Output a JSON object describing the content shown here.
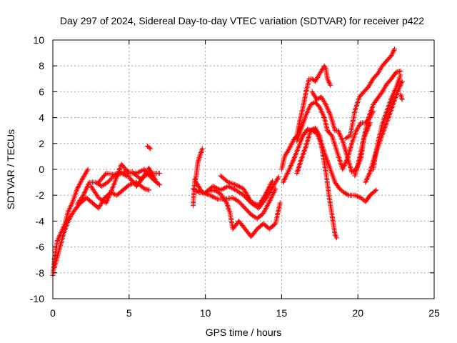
{
  "chart_data": {
    "type": "scatter",
    "title": "Day 297 of 2024, Sidereal Day-to-day VTEC variation (SDTVAR) for receiver p422",
    "xlabel": "GPS time / hours",
    "ylabel": "SDTVAR / TECUs",
    "xlim": [
      0,
      25
    ],
    "ylim": [
      -10,
      10
    ],
    "xticks": [
      "0",
      "5",
      "10",
      "15",
      "20",
      "25"
    ],
    "yticks": [
      "-10",
      "-8",
      "-6",
      "-4",
      "-2",
      "0",
      "2",
      "4",
      "6",
      "8",
      "10"
    ],
    "grid": true,
    "marker": "+",
    "series_color": "#ff0000",
    "tracks": [
      [
        [
          0.0,
          -8.2
        ],
        [
          0.1,
          -7.0
        ],
        [
          0.2,
          -6.2
        ],
        [
          0.3,
          -5.5
        ],
        [
          0.5,
          -5.0
        ],
        [
          0.8,
          -4.2
        ],
        [
          1.0,
          -3.3
        ],
        [
          1.3,
          -2.5
        ],
        [
          1.6,
          -1.5
        ],
        [
          2.0,
          -0.6
        ],
        [
          2.3,
          0.0
        ]
      ],
      [
        [
          0.1,
          -7.6
        ],
        [
          0.4,
          -6.3
        ],
        [
          0.7,
          -5.0
        ],
        [
          1.0,
          -4.0
        ],
        [
          1.4,
          -3.2
        ],
        [
          1.8,
          -2.6
        ],
        [
          2.2,
          -2.2
        ],
        [
          2.6,
          -2.6
        ],
        [
          3.0,
          -3.0
        ],
        [
          3.4,
          -2.2
        ],
        [
          3.8,
          -1.8
        ],
        [
          4.2,
          -2.0
        ],
        [
          4.6,
          -1.6
        ],
        [
          5.0,
          -1.2
        ],
        [
          5.5,
          -1.0
        ],
        [
          6.0,
          -1.5
        ],
        [
          6.3,
          -1.6
        ]
      ],
      [
        [
          1.6,
          -2.7
        ],
        [
          2.0,
          -2.0
        ],
        [
          2.4,
          -1.0
        ],
        [
          2.8,
          -1.0
        ],
        [
          3.2,
          -1.3
        ],
        [
          3.6,
          -1.0
        ],
        [
          4.0,
          -0.5
        ],
        [
          4.5,
          -0.3
        ],
        [
          5.0,
          -0.6
        ],
        [
          5.5,
          -1.3
        ],
        [
          6.0,
          -0.5
        ],
        [
          6.5,
          -0.3
        ],
        [
          7.0,
          -0.3
        ]
      ],
      [
        [
          2.5,
          -1.3
        ],
        [
          3.0,
          -2.2
        ],
        [
          3.5,
          -2.6
        ],
        [
          4.0,
          -1.2
        ],
        [
          4.5,
          0.4
        ],
        [
          5.0,
          -0.3
        ],
        [
          5.5,
          -0.3
        ],
        [
          6.0,
          0.0
        ],
        [
          6.5,
          -0.7
        ],
        [
          7.0,
          -1.2
        ]
      ],
      [
        [
          3.0,
          -1.0
        ],
        [
          3.5,
          -0.3
        ],
        [
          4.0,
          -0.4
        ],
        [
          4.5,
          -0.2
        ],
        [
          5.2,
          -0.2
        ],
        [
          5.8,
          -0.8
        ],
        [
          6.3,
          0.1
        ],
        [
          6.8,
          -1.0
        ]
      ],
      [
        [
          6.2,
          1.8
        ],
        [
          6.4,
          1.6
        ]
      ],
      [
        [
          9.2,
          -2.8
        ],
        [
          9.3,
          -1.0
        ],
        [
          9.4,
          -0.5
        ],
        [
          9.5,
          0.5
        ],
        [
          9.6,
          0.9
        ],
        [
          9.8,
          1.6
        ]
      ],
      [
        [
          9.2,
          -1.5
        ],
        [
          9.6,
          -1.8
        ],
        [
          10.0,
          -1.8
        ],
        [
          10.5,
          -1.3
        ],
        [
          11.0,
          -1.6
        ],
        [
          11.5,
          -1.3
        ],
        [
          12.0,
          -1.6
        ],
        [
          12.5,
          -2.0
        ],
        [
          13.0,
          -2.6
        ],
        [
          13.5,
          -3.0
        ],
        [
          14.0,
          -2.2
        ],
        [
          14.5,
          -1.2
        ],
        [
          14.8,
          -0.6
        ]
      ],
      [
        [
          9.3,
          -0.8
        ],
        [
          9.8,
          -1.8
        ],
        [
          10.3,
          -2.0
        ],
        [
          10.8,
          -2.3
        ],
        [
          11.3,
          -2.3
        ],
        [
          11.8,
          -2.2
        ],
        [
          12.2,
          -2.5
        ],
        [
          12.6,
          -3.0
        ],
        [
          13.0,
          -3.5
        ],
        [
          13.4,
          -3.8
        ],
        [
          13.8,
          -3.4
        ],
        [
          14.2,
          -2.5
        ],
        [
          14.6,
          -1.5
        ]
      ],
      [
        [
          10.2,
          -1.7
        ],
        [
          10.6,
          -1.6
        ],
        [
          11.0,
          -1.9
        ],
        [
          11.4,
          -2.6
        ],
        [
          11.6,
          -3.3
        ],
        [
          11.8,
          -4.6
        ],
        [
          12.2,
          -4.0
        ],
        [
          12.6,
          -4.6
        ],
        [
          13.0,
          -5.2
        ],
        [
          13.4,
          -4.6
        ],
        [
          13.8,
          -4.2
        ],
        [
          14.2,
          -4.6
        ],
        [
          14.6,
          -4.2
        ],
        [
          14.9,
          -2.6
        ]
      ],
      [
        [
          11.0,
          -0.5
        ],
        [
          11.5,
          -1.0
        ],
        [
          12.0,
          -1.2
        ],
        [
          12.5,
          -1.5
        ],
        [
          13.0,
          -2.5
        ],
        [
          13.5,
          -2.8
        ],
        [
          14.0,
          -1.8
        ],
        [
          14.4,
          -0.9
        ]
      ],
      [
        [
          15.0,
          0.0
        ],
        [
          15.2,
          1.0
        ],
        [
          15.5,
          1.6
        ],
        [
          15.8,
          2.3
        ],
        [
          16.0,
          2.6
        ],
        [
          16.2,
          3.8
        ],
        [
          16.4,
          4.8
        ],
        [
          16.6,
          6.0
        ],
        [
          16.8,
          7.0
        ],
        [
          17.0,
          7.0
        ],
        [
          17.2,
          6.8
        ],
        [
          17.4,
          7.2
        ],
        [
          17.6,
          7.6
        ],
        [
          17.8,
          8.0
        ],
        [
          17.9,
          7.8
        ],
        [
          18.0,
          7.0
        ],
        [
          18.2,
          6.5
        ]
      ],
      [
        [
          15.1,
          -1.0
        ],
        [
          15.5,
          0.0
        ],
        [
          15.8,
          0.8
        ],
        [
          16.1,
          1.7
        ],
        [
          16.4,
          2.6
        ],
        [
          16.7,
          3.1
        ],
        [
          17.0,
          3.0
        ],
        [
          17.3,
          2.8
        ],
        [
          17.6,
          2.0
        ],
        [
          17.9,
          1.0
        ],
        [
          18.2,
          0.0
        ],
        [
          18.5,
          -1.0
        ],
        [
          18.8,
          -1.5
        ],
        [
          19.1,
          -1.8
        ],
        [
          19.4,
          -2.0
        ],
        [
          19.8,
          -2.0
        ],
        [
          20.2,
          -2.2
        ],
        [
          20.5,
          -2.5
        ],
        [
          20.8,
          -2.0
        ],
        [
          21.2,
          -1.6
        ]
      ],
      [
        [
          16.0,
          -0.3
        ],
        [
          16.3,
          0.8
        ],
        [
          16.6,
          1.8
        ],
        [
          16.9,
          3.0
        ],
        [
          17.2,
          3.2
        ],
        [
          17.5,
          2.6
        ],
        [
          17.7,
          1.2
        ],
        [
          17.9,
          -0.2
        ],
        [
          18.1,
          -2.0
        ],
        [
          18.3,
          -3.5
        ],
        [
          18.5,
          -5.0
        ],
        [
          18.6,
          -5.3
        ]
      ],
      [
        [
          16.0,
          2.2
        ],
        [
          16.3,
          3.2
        ],
        [
          16.6,
          4.2
        ],
        [
          16.9,
          5.0
        ],
        [
          17.2,
          5.2
        ],
        [
          17.5,
          4.8
        ],
        [
          17.8,
          4.0
        ],
        [
          18.0,
          3.0
        ],
        [
          18.3,
          2.6
        ],
        [
          18.6,
          1.5
        ],
        [
          19.0,
          0.0
        ],
        [
          19.3,
          0.8
        ],
        [
          19.6,
          2.0
        ],
        [
          19.9,
          3.0
        ],
        [
          20.2,
          3.6
        ],
        [
          20.5,
          3.6
        ],
        [
          20.8,
          4.0
        ],
        [
          21.0,
          4.5
        ]
      ],
      [
        [
          17.0,
          6.0
        ],
        [
          17.3,
          5.4
        ],
        [
          17.6,
          5.6
        ],
        [
          17.9,
          5.0
        ],
        [
          18.2,
          4.2
        ],
        [
          18.5,
          3.0
        ],
        [
          18.7,
          3.0
        ],
        [
          19.0,
          2.2
        ],
        [
          19.3,
          1.0
        ],
        [
          19.6,
          -0.2
        ],
        [
          19.9,
          0.0
        ],
        [
          20.2,
          0.9
        ],
        [
          20.4,
          2.4
        ],
        [
          20.6,
          3.0
        ],
        [
          20.8,
          3.6
        ]
      ],
      [
        [
          19.2,
          2.4
        ],
        [
          19.5,
          2.6
        ],
        [
          19.8,
          4.5
        ],
        [
          20.1,
          5.6
        ],
        [
          20.4,
          6.0
        ],
        [
          20.7,
          6.4
        ],
        [
          21.0,
          7.0
        ],
        [
          21.3,
          7.4
        ],
        [
          21.6,
          8.0
        ],
        [
          21.9,
          8.4
        ],
        [
          22.2,
          8.8
        ],
        [
          22.4,
          9.3
        ]
      ],
      [
        [
          19.8,
          -0.5
        ],
        [
          20.1,
          0.8
        ],
        [
          20.4,
          2.5
        ],
        [
          20.7,
          4.0
        ],
        [
          21.0,
          5.0
        ],
        [
          21.3,
          5.5
        ],
        [
          21.6,
          6.0
        ],
        [
          21.9,
          6.6
        ],
        [
          22.2,
          7.0
        ],
        [
          22.5,
          7.5
        ],
        [
          22.8,
          7.6
        ]
      ],
      [
        [
          20.5,
          -1.0
        ],
        [
          20.8,
          -0.2
        ],
        [
          21.1,
          1.0
        ],
        [
          21.4,
          2.0
        ],
        [
          21.7,
          3.0
        ],
        [
          22.0,
          4.0
        ],
        [
          22.3,
          5.0
        ],
        [
          22.6,
          6.0
        ],
        [
          22.9,
          6.8
        ]
      ],
      [
        [
          21.0,
          0.0
        ],
        [
          21.3,
          2.0
        ],
        [
          21.6,
          3.5
        ],
        [
          21.9,
          4.5
        ],
        [
          22.2,
          5.5
        ],
        [
          22.5,
          6.3
        ],
        [
          22.8,
          7.3
        ]
      ],
      [
        [
          22.8,
          5.8
        ],
        [
          22.9,
          5.4
        ]
      ]
    ]
  }
}
